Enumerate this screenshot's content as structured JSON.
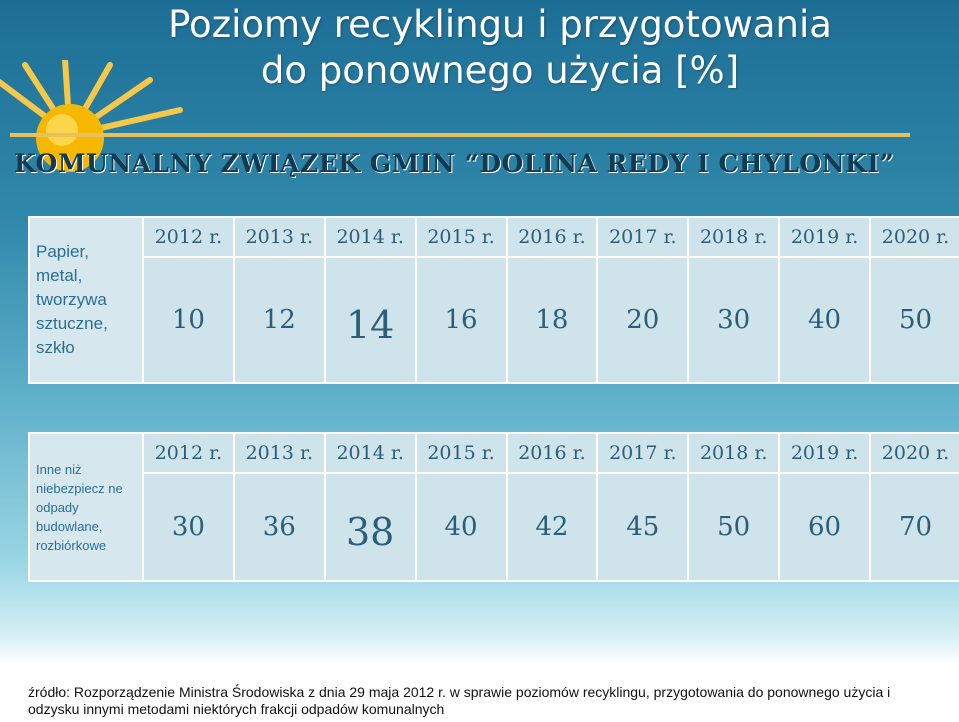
{
  "title_line1": "Poziomy recyklingu i przygotowania",
  "title_line2": "do ponownego użycia [%]",
  "organization": "KOMUNALNY ZWIĄZEK GMIN “DOLINA REDY I CHYLONKI”",
  "years": [
    "2012 r.",
    "2013 r.",
    "2014 r.",
    "2015 r.",
    "2016 r.",
    "2017 r.",
    "2018 r.",
    "2019 r.",
    "2020 r."
  ],
  "table1": {
    "label": "Papier, metal, tworzywa sztuczne, szkło",
    "values": [
      "10",
      "12",
      "14",
      "16",
      "18",
      "20",
      "30",
      "40",
      "50"
    ]
  },
  "table2": {
    "label": "Inne niż niebezpiecz ne odpady budowlane, rozbiórkowe",
    "values": [
      "30",
      "36",
      "38",
      "40",
      "42",
      "45",
      "50",
      "60",
      "70"
    ]
  },
  "source": "źródło: Rozporządzenie Ministra Środowiska z dnia 29 maja 2012 r. w sprawie poziomów recyklingu, przygotowania do ponownego użycia i odzysku innymi metodami niektórych frakcji odpadów komunalnych",
  "colors": {
    "accent": "#e8c15a",
    "sun": "#f5b800",
    "table_bg": "#cfe3ea",
    "text": "#2a5e7a"
  }
}
